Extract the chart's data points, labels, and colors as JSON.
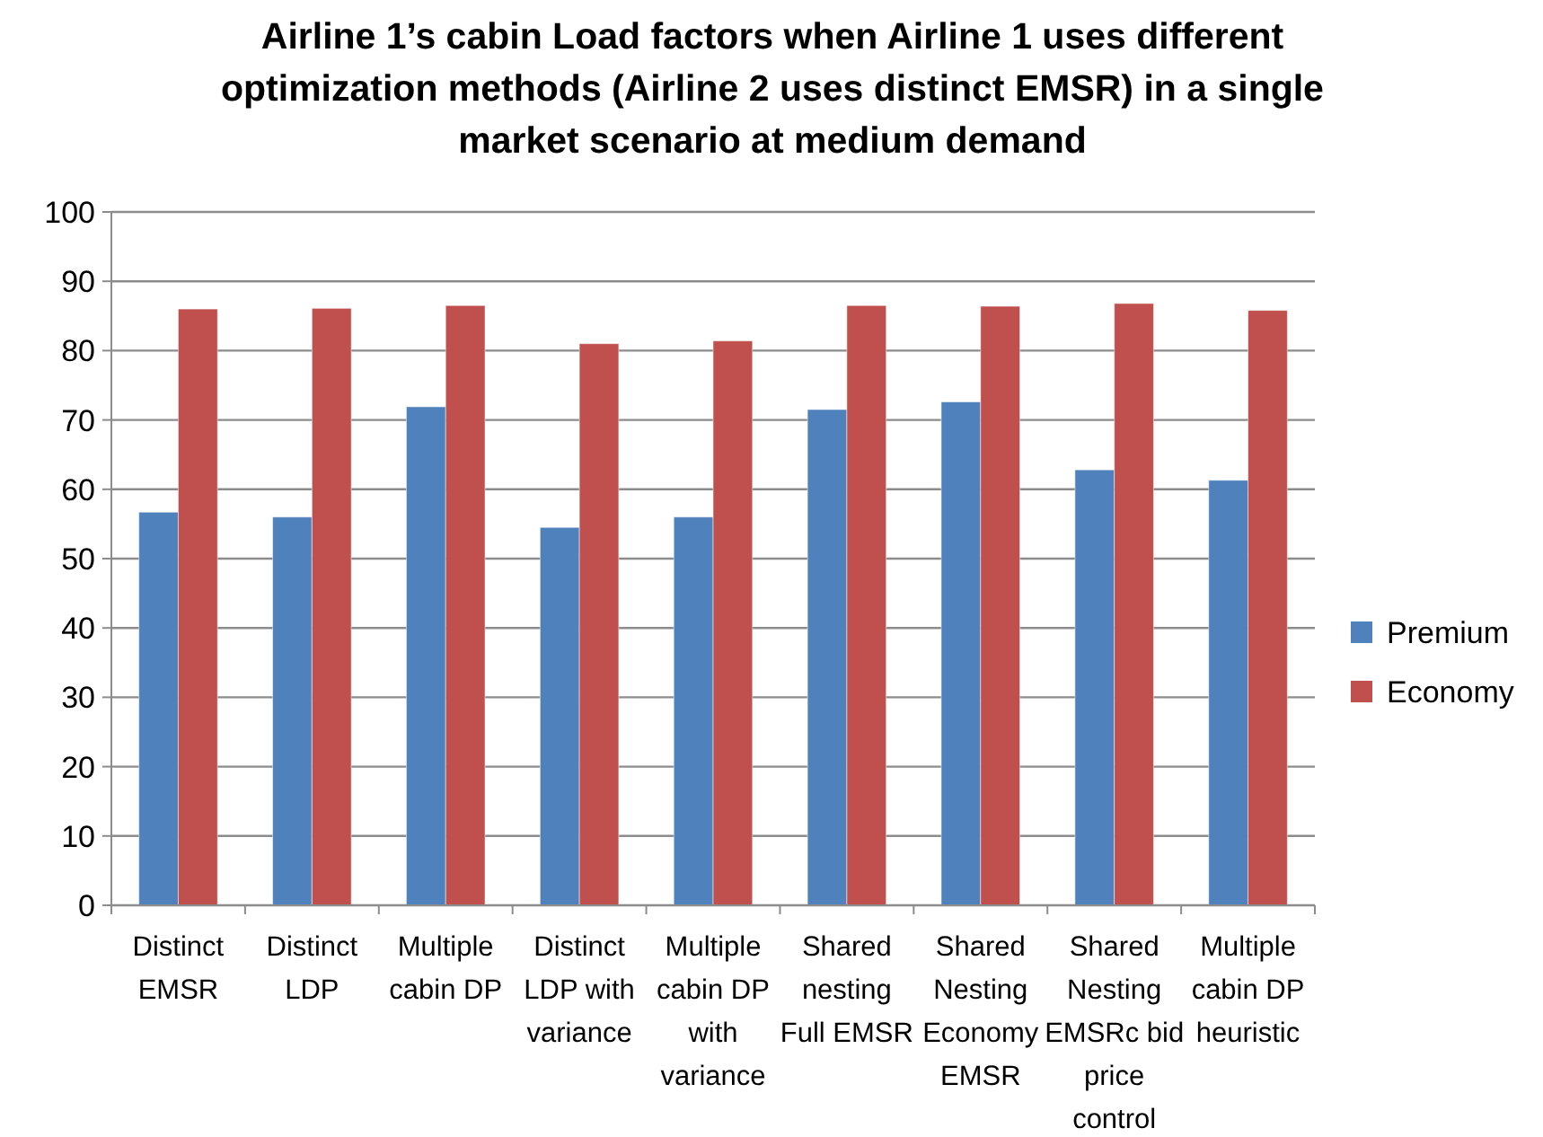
{
  "chart_data": {
    "type": "bar",
    "title": "Airline 1’s cabin Load factors when Airline 1 uses different optimization methods (Airline 2 uses distinct EMSR) in a single market scenario at medium demand",
    "categories": [
      "Distinct EMSR",
      "Distinct LDP",
      "Multiple cabin DP",
      "Distinct LDP with variance",
      "Multiple cabin DP with variance",
      "Shared nesting Full EMSR",
      "Shared Nesting Economy EMSR",
      "Shared Nesting EMSRc bid price control",
      "Multiple cabin DP heuristic"
    ],
    "series": [
      {
        "name": "Premium",
        "color": "#4f81bd",
        "values": [
          56.7,
          56.0,
          71.9,
          54.5,
          56.0,
          71.5,
          72.6,
          62.8,
          61.3
        ]
      },
      {
        "name": "Economy",
        "color": "#c0504d",
        "values": [
          86.0,
          86.1,
          86.5,
          81.0,
          81.4,
          86.5,
          86.4,
          86.8,
          85.8
        ]
      }
    ],
    "ylim": [
      0,
      100
    ],
    "yticks": [
      0,
      10,
      20,
      30,
      40,
      50,
      60,
      70,
      80,
      90,
      100
    ],
    "grid": "y",
    "legend": "right"
  }
}
